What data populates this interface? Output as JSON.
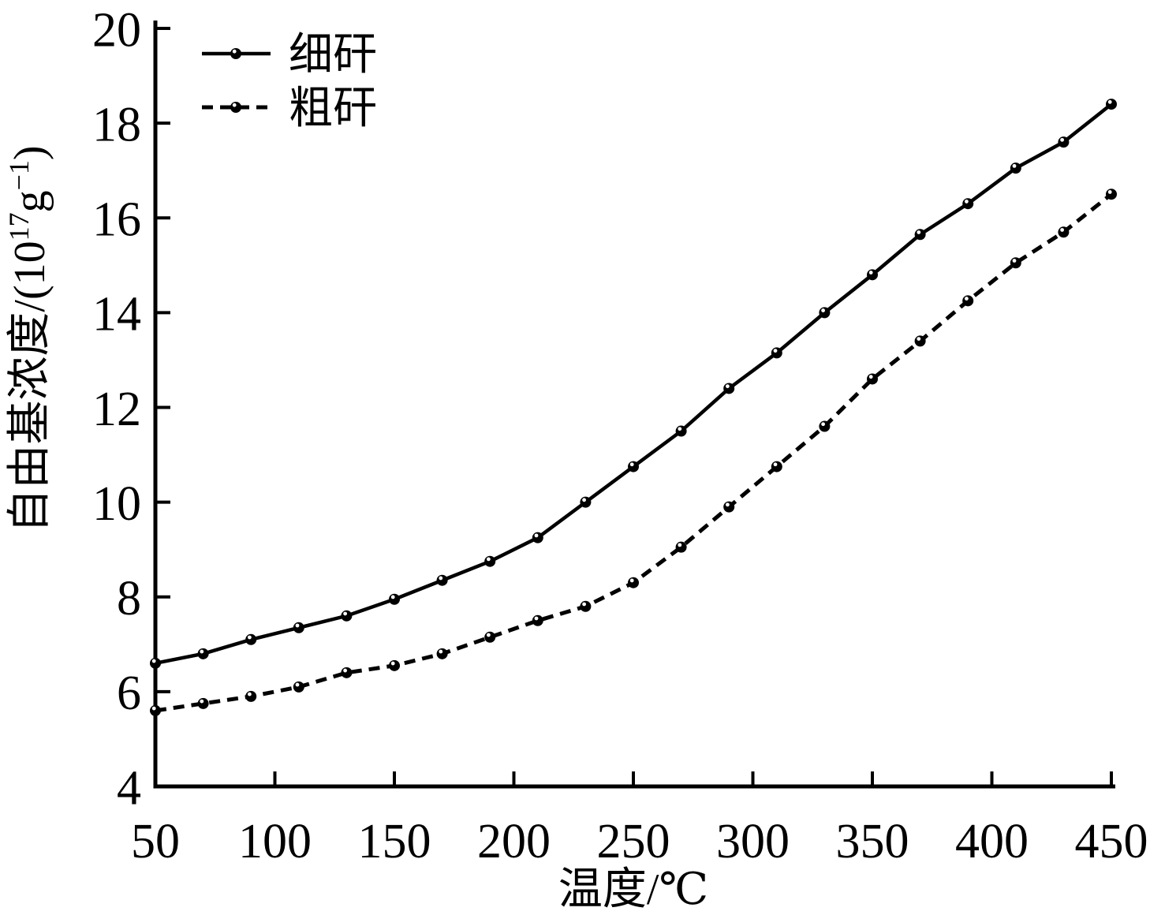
{
  "chart_data": {
    "type": "line",
    "title": "",
    "xlabel": "温度/℃",
    "ylabel": "自由基浓度/(10¹⁷g⁻¹)",
    "ylabel_parts": [
      {
        "text": "自由基浓度/(10",
        "sup": false
      },
      {
        "text": "17",
        "sup": true
      },
      {
        "text": "g",
        "sup": false
      },
      {
        "text": "−1",
        "sup": true
      },
      {
        "text": ")",
        "sup": false
      }
    ],
    "xlim": [
      50,
      450
    ],
    "ylim": [
      4,
      20
    ],
    "x_ticks": [
      50,
      100,
      150,
      200,
      250,
      300,
      350,
      400,
      450
    ],
    "y_ticks": [
      4,
      6,
      8,
      10,
      12,
      14,
      16,
      18,
      20
    ],
    "grid": false,
    "legend_position": "top-left",
    "axis_color": "#000000",
    "background_color": "#ffffff",
    "x": [
      50,
      70,
      90,
      110,
      130,
      150,
      170,
      190,
      210,
      230,
      250,
      270,
      290,
      310,
      330,
      350,
      370,
      390,
      410,
      430,
      450
    ],
    "series": [
      {
        "name": "细矸",
        "line_style": "solid",
        "marker": "ball",
        "color": "#000000",
        "values": [
          6.6,
          6.8,
          7.1,
          7.35,
          7.6,
          7.95,
          8.35,
          8.75,
          9.25,
          10.0,
          10.75,
          11.5,
          12.4,
          13.15,
          14.0,
          14.8,
          15.65,
          16.3,
          17.05,
          17.6,
          18.4
        ]
      },
      {
        "name": "粗矸",
        "line_style": "dashed",
        "marker": "ball",
        "color": "#000000",
        "values": [
          5.6,
          5.75,
          5.9,
          6.1,
          6.4,
          6.55,
          6.8,
          7.15,
          7.5,
          7.8,
          8.3,
          9.05,
          9.9,
          10.75,
          11.6,
          12.6,
          13.4,
          14.25,
          15.05,
          15.7,
          16.5
        ]
      }
    ]
  }
}
